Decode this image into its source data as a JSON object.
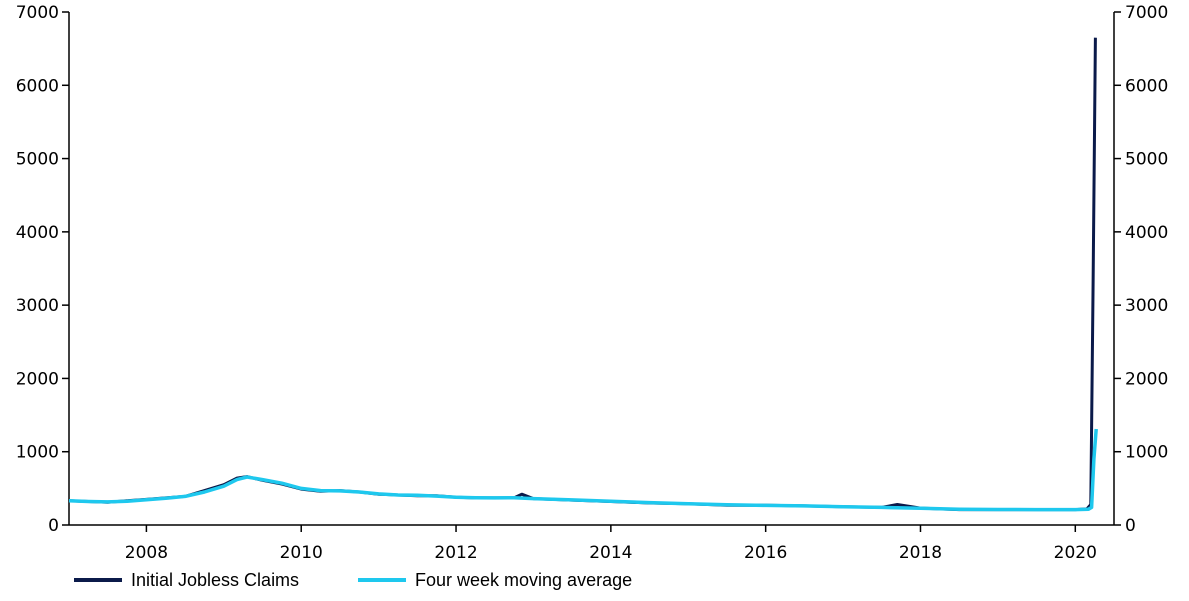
{
  "chart_data": {
    "type": "line",
    "title": "",
    "xlabel": "",
    "ylabel": "",
    "x_range": [
      2007.0,
      2020.5
    ],
    "ylim": [
      0,
      7000
    ],
    "y_ticks": [
      0,
      1000,
      2000,
      3000,
      4000,
      5000,
      6000,
      7000
    ],
    "y_tick_labels": [
      "0",
      "1000",
      "2000",
      "3000",
      "4000",
      "5000",
      "6000",
      "7000"
    ],
    "x_ticks": [
      2008,
      2010,
      2012,
      2014,
      2016,
      2018,
      2020
    ],
    "x_tick_labels": [
      "2008",
      "2010",
      "2012",
      "2014",
      "2016",
      "2018",
      "2020"
    ],
    "secondary_y_axis": true,
    "grid": false,
    "legend_position": "bottom-left",
    "series": [
      {
        "name": "Initial Jobless Claims",
        "color": "#0b1a4a",
        "x": [
          2007.0,
          2007.25,
          2007.5,
          2007.75,
          2008.0,
          2008.25,
          2008.5,
          2008.75,
          2009.0,
          2009.17,
          2009.3,
          2009.5,
          2009.75,
          2010.0,
          2010.25,
          2010.5,
          2010.75,
          2011.0,
          2011.25,
          2011.5,
          2011.75,
          2012.0,
          2012.25,
          2012.5,
          2012.75,
          2012.85,
          2013.0,
          2013.5,
          2014.0,
          2014.5,
          2015.0,
          2015.5,
          2016.0,
          2016.5,
          2017.0,
          2017.5,
          2017.7,
          2018.0,
          2018.5,
          2019.0,
          2019.5,
          2020.0,
          2020.15,
          2020.2,
          2020.23,
          2020.26
        ],
        "y": [
          330,
          320,
          310,
          330,
          350,
          370,
          390,
          470,
          550,
          640,
          660,
          610,
          560,
          490,
          460,
          470,
          450,
          420,
          410,
          400,
          400,
          380,
          370,
          370,
          370,
          420,
          360,
          340,
          320,
          300,
          290,
          270,
          270,
          260,
          250,
          240,
          280,
          230,
          210,
          210,
          210,
          210,
          220,
          280,
          3300,
          6650
        ]
      },
      {
        "name": "Four week moving average",
        "color": "#1ec8ee",
        "x": [
          2007.0,
          2007.25,
          2007.5,
          2007.75,
          2008.0,
          2008.25,
          2008.5,
          2008.75,
          2009.0,
          2009.17,
          2009.3,
          2009.5,
          2009.75,
          2010.0,
          2010.25,
          2010.5,
          2010.75,
          2011.0,
          2011.25,
          2011.5,
          2011.75,
          2012.0,
          2012.25,
          2012.5,
          2012.75,
          2013.0,
          2013.5,
          2014.0,
          2014.5,
          2015.0,
          2015.5,
          2016.0,
          2016.5,
          2017.0,
          2017.5,
          2018.0,
          2018.5,
          2019.0,
          2019.5,
          2020.0,
          2020.17,
          2020.21,
          2020.24,
          2020.27
        ],
        "y": [
          330,
          320,
          315,
          325,
          345,
          365,
          390,
          450,
          530,
          620,
          655,
          620,
          570,
          500,
          470,
          465,
          450,
          425,
          410,
          405,
          395,
          380,
          372,
          370,
          372,
          360,
          342,
          325,
          305,
          290,
          275,
          268,
          260,
          250,
          240,
          228,
          215,
          212,
          210,
          210,
          215,
          240,
          900,
          1310
        ]
      }
    ]
  }
}
